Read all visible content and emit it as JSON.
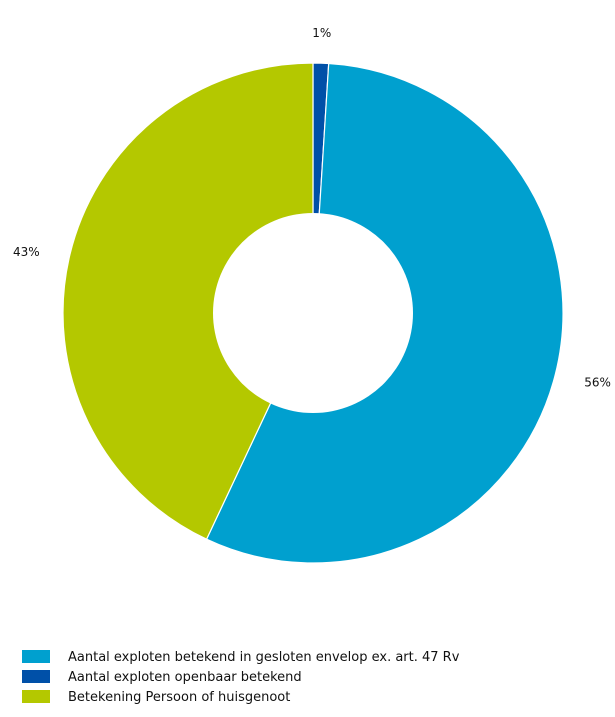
{
  "chart_data": {
    "type": "pie",
    "variant": "donut",
    "title": "",
    "slices": [
      {
        "label": "Aantal exploten betekend in gesloten envelop ex. art. 47 Rv",
        "value": 56,
        "value_label": "56%",
        "color": "#00a0cf"
      },
      {
        "label": "Aantal exploten openbaar betekend",
        "value": 1,
        "value_label": "1%",
        "color": "#0050a8"
      },
      {
        "label": "Betekening Persoon of huisgenoot",
        "value": 43,
        "value_label": "43%",
        "color": "#b4c800"
      }
    ],
    "legend_position": "bottom-left"
  }
}
